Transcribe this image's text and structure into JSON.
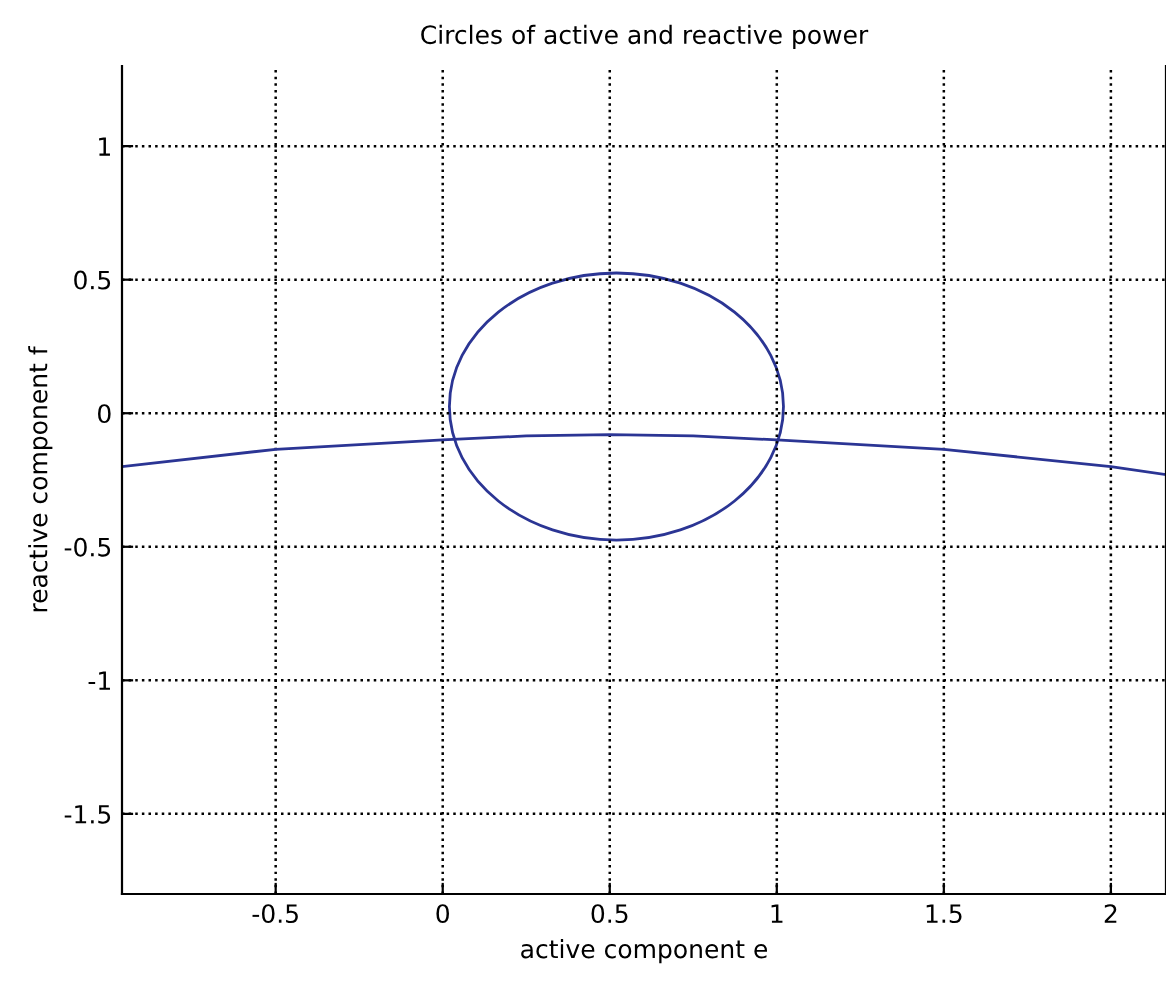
{
  "chart_data": {
    "type": "line",
    "title": "Circles of active and reactive power",
    "xlabel": "active component e",
    "ylabel": "reactive component f",
    "xlim": [
      -0.96,
      2.165
    ],
    "ylim": [
      -1.8,
      1.3
    ],
    "xticks": [
      -0.5,
      0,
      0.5,
      1,
      1.5,
      2
    ],
    "yticks": [
      -1.5,
      -1,
      -0.5,
      0,
      0.5,
      1
    ],
    "grid": true,
    "legend": false,
    "marker": "none",
    "line_style": "solid",
    "series": [
      {
        "color": "#2b3594",
        "x": [
          -0.96,
          -0.5,
          0,
          0.25,
          0.5,
          0.75,
          1,
          1.5,
          2,
          2.165
        ],
        "values": [
          -0.2,
          -0.135,
          -0.1,
          -0.085,
          -0.08,
          -0.085,
          -0.1,
          -0.135,
          -0.2,
          -0.23
        ]
      }
    ]
  }
}
